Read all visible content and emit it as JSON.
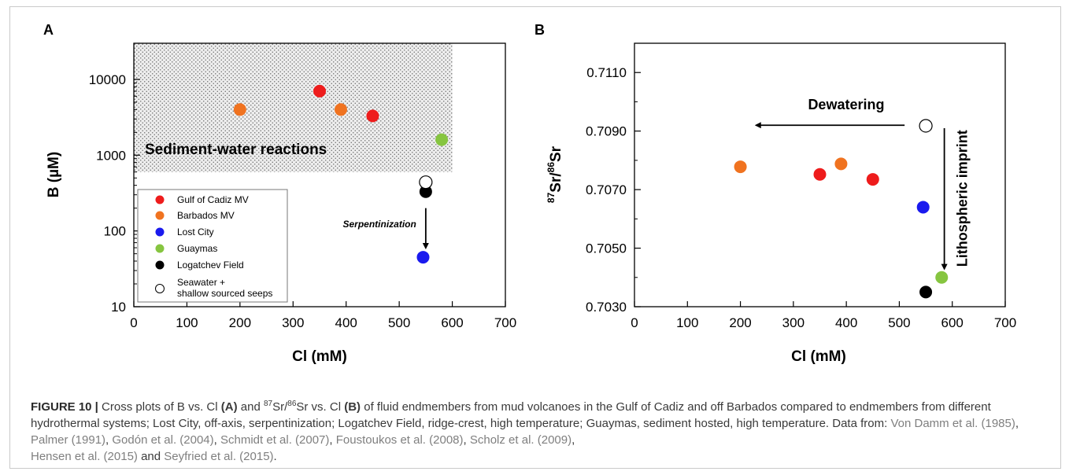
{
  "figure_caption": {
    "label": "FIGURE 10 |",
    "s1": " Cross plots of B vs. Cl ",
    "bA": "(A)",
    "s2": " and ",
    "sup87": "87",
    "sr_mid": "Sr/",
    "sup86": "86",
    "s3": "Sr vs. Cl ",
    "bB": "(B)",
    "s4": " of fluid endmembers from mud volcanoes in the Gulf of Cadiz and off Barbados compared to endmembers from different hydrothermal systems; Lost City, off-axis, serpentinization; Logatchev Field, ridge-crest, high temperature; Guaymas, sediment hosted, high temperature. Data from: ",
    "refs": [
      "Von Damm et al. (1985)",
      "Palmer (1991)",
      "Godón et al. (2004)",
      "Schmidt et al. (2007)",
      "Foustoukos et al. (2008)",
      "Scholz et al. (2009)",
      "Hensen et al. (2015)",
      "Seyfried et al. (2015)"
    ],
    "seps": [
      ", ",
      ", ",
      ", ",
      ", ",
      ", ",
      ",\n",
      " and ",
      "."
    ]
  },
  "colors": {
    "Gulf of Cadiz MV": "#ee1c1c",
    "Barbados MV": "#f07320",
    "Lost City": "#1a1aee",
    "Guaymas": "#86c540",
    "Logatchev Field": "#000000",
    "Seawater +\nshallow sourced seeps": "#ffffff",
    "stipple_bg": "#ededed"
  },
  "chart_data": [
    {
      "panel": "A",
      "type": "scatter",
      "xlabel": "Cl (mM)",
      "ylabel": "B (µM)",
      "xlim": [
        0,
        700
      ],
      "ylim": [
        10,
        30000
      ],
      "yscale": "log",
      "xticks": [
        "0",
        "100",
        "200",
        "300",
        "400",
        "500",
        "600",
        "700"
      ],
      "yticks": [
        "10",
        "100",
        "1000",
        "10000"
      ],
      "shaded_region": {
        "x": [
          0,
          600
        ],
        "y": [
          600,
          30000
        ],
        "label": "Sediment-water reactions"
      },
      "annotations": [
        {
          "text": "Serpentinization",
          "arrow": "down",
          "x": 550,
          "from_y": 200,
          "to_y": 60
        }
      ],
      "legend_position": "bottom-left",
      "series": [
        {
          "name": "Gulf of Cadiz MV",
          "x": [
            350,
            450
          ],
          "y": [
            7000,
            3300
          ]
        },
        {
          "name": "Barbados MV",
          "x": [
            200,
            390
          ],
          "y": [
            4000,
            4000
          ]
        },
        {
          "name": "Lost City",
          "x": [
            545
          ],
          "y": [
            45
          ]
        },
        {
          "name": "Guaymas",
          "x": [
            580
          ],
          "y": [
            1600
          ]
        },
        {
          "name": "Logatchev Field",
          "x": [
            550
          ],
          "y": [
            330
          ]
        },
        {
          "name": "Seawater +\nshallow sourced seeps",
          "x": [
            550
          ],
          "y": [
            440
          ]
        }
      ]
    },
    {
      "panel": "B",
      "type": "scatter",
      "xlabel": "Cl (mM)",
      "ylabel_sup1": "87",
      "ylabel_mid": "Sr/",
      "ylabel_sup2": "86",
      "ylabel_end": "Sr",
      "xlim": [
        0,
        700
      ],
      "ylim": [
        0.703,
        0.712
      ],
      "xticks": [
        "0",
        "100",
        "200",
        "300",
        "400",
        "500",
        "600",
        "700"
      ],
      "yticks": [
        "0.7030",
        "0.7050",
        "0.7070",
        "0.7090",
        "0.7110"
      ],
      "annotations": [
        {
          "text": "Dewatering",
          "arrow": "left",
          "y": 0.7092,
          "from_x": 510,
          "to_x": 230
        },
        {
          "text": "Lithospheric imprint",
          "arrow": "down",
          "x": 585,
          "from_y": 0.7091,
          "to_y": 0.7043
        }
      ],
      "series": [
        {
          "name": "Gulf of Cadiz MV",
          "x": [
            350,
            450
          ],
          "y": [
            0.70752,
            0.70735
          ]
        },
        {
          "name": "Barbados MV",
          "x": [
            200,
            390
          ],
          "y": [
            0.70778,
            0.70788
          ]
        },
        {
          "name": "Lost City",
          "x": [
            545
          ],
          "y": [
            0.7064
          ]
        },
        {
          "name": "Guaymas",
          "x": [
            580
          ],
          "y": [
            0.704
          ]
        },
        {
          "name": "Logatchev Field",
          "x": [
            550
          ],
          "y": [
            0.7035
          ]
        },
        {
          "name": "Seawater +\nshallow sourced seeps",
          "x": [
            550
          ],
          "y": [
            0.70918
          ]
        }
      ]
    }
  ]
}
